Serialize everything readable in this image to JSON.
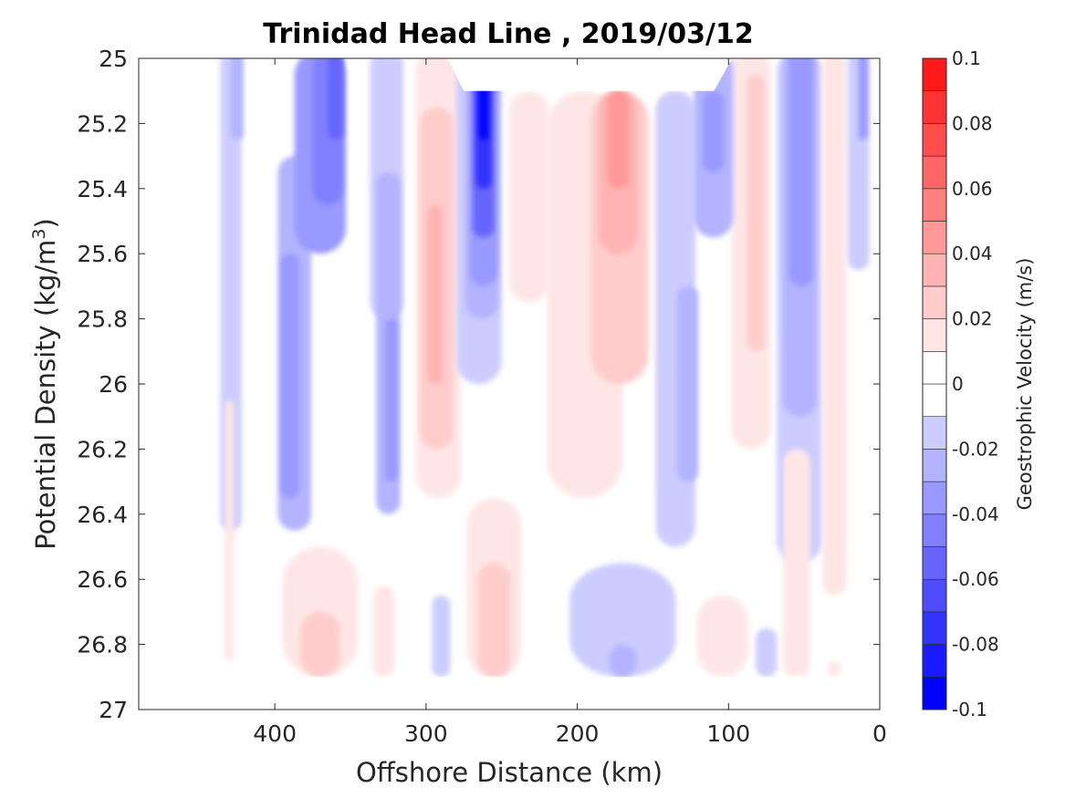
{
  "chart_data": {
    "type": "contour",
    "title": "Trinidad Head Line , 2019/03/12",
    "xlabel": "Offshore Distance (km)",
    "ylabel_prefix": "Potential Density (kg/m",
    "ylabel_sup": "3",
    "ylabel_suffix": ")",
    "xlim": [
      490,
      0
    ],
    "ylim": [
      25,
      27
    ],
    "x_ticks": [
      400,
      300,
      200,
      100,
      0
    ],
    "x_tick_labels": [
      "400",
      "300",
      "200",
      "100",
      "0"
    ],
    "y_ticks": [
      25,
      25.2,
      25.4,
      25.6,
      25.8,
      26,
      26.2,
      26.4,
      26.6,
      26.8,
      27
    ],
    "y_tick_labels": [
      "25",
      "25.2",
      "25.4",
      "25.6",
      "25.8",
      "26",
      "26.2",
      "26.4",
      "26.6",
      "26.8",
      "27"
    ],
    "colorbar": {
      "label": "Geostrophic Velocity (m/s)",
      "range": [
        -0.1,
        0.1
      ],
      "levels": [
        -0.1,
        -0.09,
        -0.08,
        -0.07,
        -0.06,
        -0.05,
        -0.04,
        -0.03,
        -0.02,
        -0.01,
        0,
        0.01,
        0.02,
        0.03,
        0.04,
        0.05,
        0.06,
        0.07,
        0.08,
        0.09,
        0.1
      ],
      "ticks": [
        -0.1,
        -0.08,
        -0.06,
        -0.04,
        -0.02,
        0,
        0.02,
        0.04,
        0.06,
        0.08,
        0.1
      ],
      "tick_labels": [
        "-0.1",
        "-0.08",
        "-0.06",
        "-0.04",
        "-0.02",
        "0",
        "0.02",
        "0.04",
        "0.06",
        "0.08",
        "0.1"
      ],
      "colors": [
        "#0000ff",
        "#1a1aff",
        "#3333ff",
        "#4d4dff",
        "#6666ff",
        "#8080ff",
        "#9999ff",
        "#b3b3ff",
        "#ccccff",
        "#e6e6ff",
        "#ffffff",
        "#ffe6e6",
        "#ffcccc",
        "#ffb3b3",
        "#ff9999",
        "#ff8080",
        "#ff6666",
        "#ff4d4d",
        "#ff3333",
        "#ff1a1a"
      ]
    },
    "data_extent": {
      "x": [
        440,
        10
      ],
      "y": [
        25,
        26.9
      ]
    },
    "no_data_region": {
      "x": [
        275,
        100
      ],
      "y": [
        25,
        25.1
      ]
    },
    "bands": [
      {
        "x": 429,
        "y0": 25,
        "y1": 26.45,
        "v": -0.01,
        "w": 14
      },
      {
        "x": 425,
        "y0": 25,
        "y1": 25.25,
        "v": -0.02,
        "w": 8
      },
      {
        "x": 430,
        "y0": 26.05,
        "y1": 26.85,
        "v": 0.01,
        "w": 6
      },
      {
        "x": 387,
        "y0": 25.3,
        "y1": 26.45,
        "v": -0.02,
        "w": 22
      },
      {
        "x": 390,
        "y0": 25.6,
        "y1": 26.35,
        "v": -0.03,
        "w": 12
      },
      {
        "x": 370,
        "y0": 25,
        "y1": 25.6,
        "v": -0.03,
        "w": 34
      },
      {
        "x": 365,
        "y0": 25,
        "y1": 25.45,
        "v": -0.04,
        "w": 20
      },
      {
        "x": 360,
        "y0": 25,
        "y1": 25.25,
        "v": -0.05,
        "w": 10
      },
      {
        "x": 326,
        "y0": 25,
        "y1": 25.8,
        "v": -0.01,
        "w": 22
      },
      {
        "x": 325,
        "y0": 25.35,
        "y1": 26.4,
        "v": -0.02,
        "w": 16
      },
      {
        "x": 323,
        "y0": 25.8,
        "y1": 26.3,
        "v": -0.03,
        "w": 8
      },
      {
        "x": 292,
        "y0": 25,
        "y1": 26.35,
        "v": 0.01,
        "w": 30
      },
      {
        "x": 293,
        "y0": 25.15,
        "y1": 26.2,
        "v": 0.02,
        "w": 22
      },
      {
        "x": 294,
        "y0": 25.45,
        "y1": 26,
        "v": 0.03,
        "w": 10
      },
      {
        "x": 265,
        "y0": 25,
        "y1": 26,
        "v": -0.01,
        "w": 30
      },
      {
        "x": 263,
        "y0": 25,
        "y1": 25.8,
        "v": -0.02,
        "w": 22
      },
      {
        "x": 262,
        "y0": 25,
        "y1": 25.7,
        "v": -0.03,
        "w": 18
      },
      {
        "x": 262,
        "y0": 25,
        "y1": 25.55,
        "v": -0.05,
        "w": 14
      },
      {
        "x": 262,
        "y0": 25,
        "y1": 25.4,
        "v": -0.07,
        "w": 10
      },
      {
        "x": 262,
        "y0": 25.02,
        "y1": 25.25,
        "v": -0.09,
        "w": 6
      },
      {
        "x": 232,
        "y0": 25.1,
        "y1": 25.75,
        "v": 0.01,
        "w": 26
      },
      {
        "x": 195,
        "y0": 25.1,
        "y1": 26.35,
        "v": 0.01,
        "w": 50
      },
      {
        "x": 172,
        "y0": 25.1,
        "y1": 26,
        "v": 0.02,
        "w": 38
      },
      {
        "x": 173,
        "y0": 25.1,
        "y1": 25.6,
        "v": 0.03,
        "w": 26
      },
      {
        "x": 173,
        "y0": 25.1,
        "y1": 25.4,
        "v": 0.04,
        "w": 14
      },
      {
        "x": 136,
        "y0": 25.1,
        "y1": 26.35,
        "v": 0.01,
        "w": 22
      },
      {
        "x": 135,
        "y0": 25.1,
        "y1": 26.5,
        "v": -0.01,
        "w": 26
      },
      {
        "x": 127,
        "y0": 25.7,
        "y1": 26.3,
        "v": -0.02,
        "w": 14
      },
      {
        "x": 110,
        "y0": 25,
        "y1": 25.55,
        "v": -0.02,
        "w": 26
      },
      {
        "x": 110,
        "y0": 25.1,
        "y1": 25.35,
        "v": -0.03,
        "w": 14
      },
      {
        "x": 85,
        "y0": 25,
        "y1": 26.2,
        "v": 0.01,
        "w": 26
      },
      {
        "x": 82,
        "y0": 25.05,
        "y1": 25.9,
        "v": 0.02,
        "w": 12
      },
      {
        "x": 53,
        "y0": 25,
        "y1": 26.55,
        "v": -0.01,
        "w": 30
      },
      {
        "x": 53,
        "y0": 25,
        "y1": 26.1,
        "v": -0.02,
        "w": 22
      },
      {
        "x": 52,
        "y0": 25,
        "y1": 25.7,
        "v": -0.03,
        "w": 16
      },
      {
        "x": 30,
        "y0": 25,
        "y1": 26.65,
        "v": 0.01,
        "w": 16
      },
      {
        "x": 14,
        "y0": 25,
        "y1": 25.65,
        "v": -0.01,
        "w": 14
      },
      {
        "x": 11,
        "y0": 25,
        "y1": 25.25,
        "v": -0.03,
        "w": 6
      },
      {
        "x": 370,
        "y0": 26.5,
        "y1": 26.9,
        "v": 0.01,
        "w": 50
      },
      {
        "x": 370,
        "y0": 26.7,
        "y1": 26.9,
        "v": 0.02,
        "w": 26
      },
      {
        "x": 328,
        "y0": 26.62,
        "y1": 26.9,
        "v": 0.01,
        "w": 14
      },
      {
        "x": 290,
        "y0": 26.65,
        "y1": 26.9,
        "v": -0.01,
        "w": 12
      },
      {
        "x": 255,
        "y0": 26.35,
        "y1": 26.9,
        "v": 0.01,
        "w": 36
      },
      {
        "x": 255,
        "y0": 26.55,
        "y1": 26.9,
        "v": 0.02,
        "w": 22
      },
      {
        "x": 170,
        "y0": 26.55,
        "y1": 26.9,
        "v": -0.01,
        "w": 70
      },
      {
        "x": 170,
        "y0": 26.8,
        "y1": 26.9,
        "v": -0.02,
        "w": 18
      },
      {
        "x": 104,
        "y0": 26.65,
        "y1": 26.9,
        "v": 0.01,
        "w": 34
      },
      {
        "x": 75,
        "y0": 26.75,
        "y1": 26.9,
        "v": -0.01,
        "w": 14
      },
      {
        "x": 55,
        "y0": 26.2,
        "y1": 26.9,
        "v": 0.01,
        "w": 18
      },
      {
        "x": 30,
        "y0": 26.85,
        "y1": 26.9,
        "v": 0.01,
        "w": 8
      }
    ]
  }
}
